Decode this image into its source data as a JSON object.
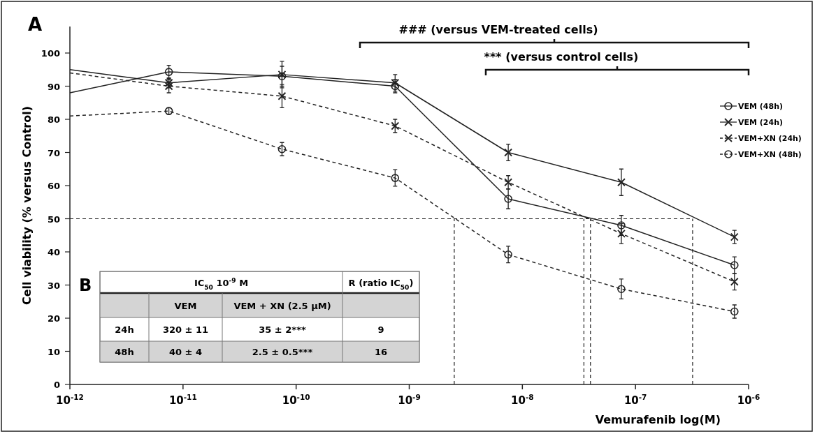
{
  "chart_data": [
    {
      "type": "line",
      "title": "A",
      "xlabel": "Vemurafenib log(M)",
      "ylabel": "Cell viability (% versus Control)",
      "log": "x",
      "xlim": [
        1e-12,
        1e-06
      ],
      "ylim": [
        0,
        108
      ],
      "xticks": [
        {
          "value": 1e-12,
          "label": "10$^{-12}$"
        },
        {
          "value": 1e-11,
          "label": "10$^{-11}$"
        },
        {
          "value": 1e-10,
          "label": "10$^{-10}$"
        },
        {
          "value": 1e-09,
          "label": "10$^{-9}$"
        },
        {
          "value": 1e-08,
          "label": "10$^{-8}$"
        },
        {
          "value": 1e-07,
          "label": "10$^{-7}$"
        },
        {
          "value": 1e-06,
          "label": "10$^{-6}$"
        }
      ],
      "yticks": [
        0,
        10,
        20,
        30,
        40,
        50,
        60,
        70,
        80,
        90,
        100
      ],
      "x": [
        1e-12,
        7.5e-12,
        7.5e-11,
        7.5e-10,
        7.5e-09,
        7.5e-08,
        7.5e-07
      ],
      "series": [
        {
          "name": "VEM (48h)",
          "color": "#222222",
          "marker": "circle",
          "line_style": "solid",
          "values": [
            88,
            94.3,
            93,
            90,
            56,
            48,
            36
          ],
          "errors": [
            null,
            2,
            3,
            2,
            3,
            3,
            2.5
          ]
        },
        {
          "name": "VEM (24h)",
          "color": "#222222",
          "marker": "cross",
          "line_style": "solid",
          "values": [
            95,
            91,
            93.5,
            91,
            70,
            61,
            44.5
          ],
          "errors": [
            null,
            1.5,
            4,
            2.5,
            2.5,
            4,
            2
          ]
        },
        {
          "name": "VEM+XN (24h)",
          "color": "#222222",
          "marker": "cross",
          "line_style": "dashed",
          "values": [
            94,
            90,
            87,
            78,
            61,
            45.5,
            31
          ],
          "errors": [
            null,
            2,
            3.5,
            2,
            2,
            3,
            2.5
          ]
        },
        {
          "name": "VEM+XN (48h)",
          "color": "#222222",
          "marker": "circle",
          "line_style": "dashed",
          "values": [
            81,
            82.5,
            71,
            62.3,
            39.2,
            28.8,
            22
          ],
          "errors": [
            null,
            1,
            2,
            2.5,
            2.5,
            3,
            2
          ]
        }
      ],
      "ref_lines": [
        {
          "axis": "y",
          "value": 50,
          "line_style": "dashed",
          "color": "#222222"
        },
        {
          "axis": "x",
          "value": 2.5e-09,
          "line_style": "dashed",
          "color": "#222222"
        },
        {
          "axis": "x",
          "value": 3.5e-08,
          "line_style": "dashed",
          "color": "#222222"
        },
        {
          "axis": "x",
          "value": 4e-08,
          "line_style": "dashed",
          "color": "#222222"
        },
        {
          "axis": "x",
          "value": 3.2e-07,
          "line_style": "dashed",
          "color": "#222222"
        }
      ],
      "annotations": [
        "### (versus VEM-treated cells)",
        "*** (versus control cells)"
      ],
      "legend": "right",
      "grid": false
    },
    {
      "type": "other",
      "title": "B",
      "annotations": [
        "IC$_{50}$ 10$^{-9}$ M",
        "R (ratio IC$_{50}$)",
        "VEM",
        "VEM + XN (2.5 µM)",
        "24h",
        "320 ± 11",
        "35 ± 2***",
        "9",
        "48h",
        "40 ± 4",
        "2.5 ± 0.5***",
        "16"
      ]
    }
  ]
}
